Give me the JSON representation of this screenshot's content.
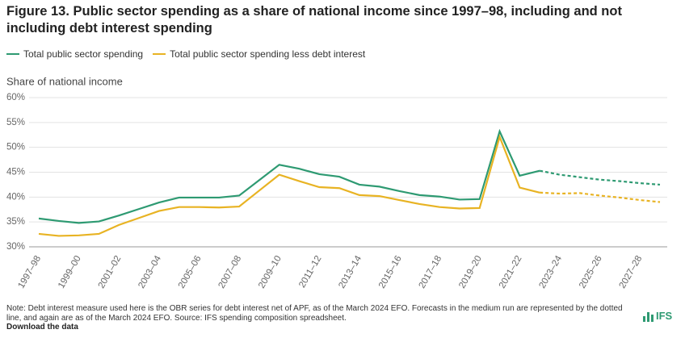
{
  "chart_data": {
    "type": "line",
    "title": "Figure 13. Public sector spending as a share of national income since 1997–98, including and not including debt interest spending",
    "y_label": "Share of national income",
    "categories": [
      "1997–98",
      null,
      "1999–00",
      null,
      "2001–02",
      null,
      "2003–04",
      null,
      "2005–06",
      null,
      "2007–08",
      null,
      "2009–10",
      null,
      "2011–12",
      null,
      "2013–14",
      null,
      "2015–16",
      null,
      "2017–18",
      null,
      "2019–20",
      null,
      "2021–22",
      null,
      "2023–24",
      null,
      "2025–26",
      null,
      "2027–28",
      null
    ],
    "series": [
      {
        "name": "Total public sector spending",
        "color": "#2e9a72",
        "dashed_from_index": 25,
        "values": [
          35.7,
          35.2,
          34.8,
          35.1,
          36.3,
          37.6,
          38.9,
          39.9,
          39.9,
          39.9,
          40.3,
          43.4,
          46.5,
          45.7,
          44.6,
          44.1,
          42.5,
          42.1,
          41.2,
          40.4,
          40.1,
          39.5,
          39.6,
          53.2,
          44.3,
          45.3,
          44.5,
          44.0,
          43.5,
          43.2,
          42.8,
          42.5
        ]
      },
      {
        "name": "Total public sector spending less debt interest",
        "color": "#e8b323",
        "dashed_from_index": 25,
        "values": [
          32.6,
          32.2,
          32.3,
          32.6,
          34.4,
          35.8,
          37.2,
          38.0,
          38.0,
          37.9,
          38.1,
          41.3,
          44.5,
          43.2,
          42.0,
          41.8,
          40.4,
          40.2,
          39.4,
          38.6,
          38.0,
          37.7,
          37.8,
          52.1,
          41.9,
          40.9,
          40.7,
          40.8,
          40.3,
          39.9,
          39.4,
          39.0
        ]
      }
    ],
    "ylim": [
      30,
      60
    ],
    "yticks": [
      {
        "value": 30,
        "label": "30%"
      },
      {
        "value": 35,
        "label": "35%"
      },
      {
        "value": 40,
        "label": "40%"
      },
      {
        "value": 45,
        "label": "45%"
      },
      {
        "value": 50,
        "label": "50%"
      },
      {
        "value": 55,
        "label": "55%"
      },
      {
        "value": 60,
        "label": "60%"
      }
    ],
    "grid": true,
    "note": "Note: Debt interest measure used here is the OBR series for debt interest net of APF, as of the March 2024 EFO. Forecasts in the medium run are represented by the dotted line, and again are as of the March 2024 EFO. Source: IFS spending composition spreadsheet.",
    "download_link": "Download the data",
    "logo": "IFS"
  }
}
